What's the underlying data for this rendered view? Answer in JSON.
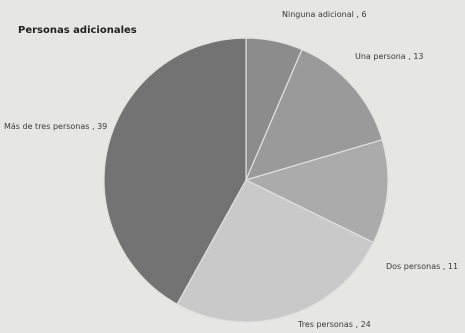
{
  "chart_data": {
    "type": "pie",
    "title": "Personas adicionales",
    "categories": [
      "Ninguna adicional",
      "Una persona",
      "Dos personas",
      "Tres personas",
      "Más de tres personas"
    ],
    "values": [
      6,
      13,
      11,
      24,
      39
    ],
    "colors": [
      "#8c8c8c",
      "#9a9a9a",
      "#ababab",
      "#c9c9c9",
      "#737373"
    ],
    "label_separator": " , "
  }
}
